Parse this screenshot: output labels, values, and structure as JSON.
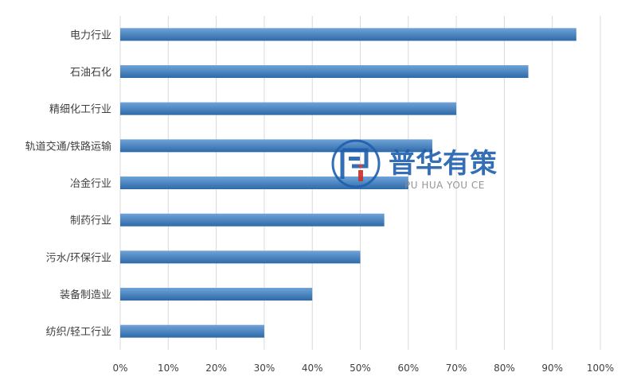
{
  "chart_data": {
    "type": "bar",
    "orientation": "horizontal",
    "categories": [
      "电力行业",
      "石油石化",
      "精细化工行业",
      "轨道交通/铁路运输",
      "冶金行业",
      "制药行业",
      "污水/环保行业",
      "装备制造业",
      "纺织/轻工行业"
    ],
    "values": [
      95,
      85,
      70,
      65,
      60,
      55,
      50,
      40,
      30
    ],
    "value_unit": "%",
    "xlim": [
      0,
      100
    ],
    "xticks": [
      "0%",
      "10%",
      "20%",
      "30%",
      "40%",
      "50%",
      "60%",
      "70%",
      "80%",
      "90%",
      "100%"
    ],
    "grid": "vertical",
    "legend": "none",
    "colors": {
      "bar_top": "#6fa3d8",
      "bar_bottom": "#2e6aa8",
      "grid": "#d9d9d9",
      "axis_text": "#404040"
    }
  },
  "watermark": {
    "name": "普华有策",
    "subtitle": "PU HUA YOU CE",
    "icon": "puhua-logo-icon",
    "color": "#1f5fae"
  }
}
